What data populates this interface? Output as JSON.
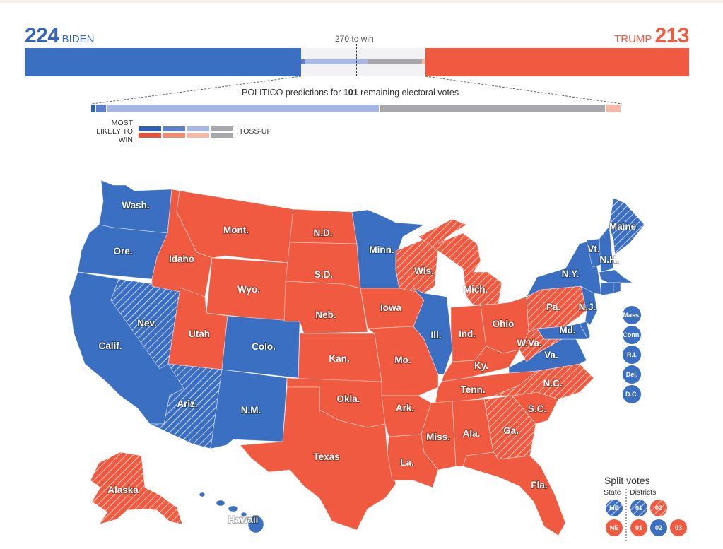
{
  "biden": {
    "count": "224",
    "name": "BIDEN",
    "color": "#3366bb"
  },
  "trump": {
    "count": "213",
    "name": "TRUMP",
    "color": "#f05a40"
  },
  "win_label": "270 to win",
  "prediction": {
    "prefix": "POLITICO predictions for",
    "count": "101",
    "suffix": "remaining electoral votes"
  },
  "legend": {
    "line1": "MOST",
    "line2": "LIKELY TO",
    "line3": "WIN",
    "tossup": "TOSS-UP",
    "colors": {
      "dem": [
        "#2f5fb3",
        "#5b7fc9",
        "#a6b7e3"
      ],
      "rep": [
        "#e8523c",
        "#f28a73",
        "#f7b8a8"
      ],
      "tossup": "#a8a8ac"
    }
  },
  "states": {
    "wash": "Wash.",
    "ore": "Ore.",
    "calif": "Calif.",
    "nev": "Nev.",
    "idaho": "Idaho",
    "mont": "Mont.",
    "wyo": "Wyo.",
    "utah": "Utah",
    "colo": "Colo.",
    "ariz": "Ariz.",
    "nm": "N.M.",
    "nd": "N.D.",
    "sd": "S.D.",
    "neb": "Neb.",
    "kan": "Kan.",
    "okla": "Okla.",
    "texas": "Texas",
    "minn": "Minn.",
    "iowa": "Iowa",
    "mo": "Mo.",
    "ark": "Ark.",
    "la": "La.",
    "wis": "Wis.",
    "ill": "Ill.",
    "mich": "Mich.",
    "ind": "Ind.",
    "ohio": "Ohio",
    "ky": "Ky.",
    "tenn": "Tenn.",
    "miss": "Miss.",
    "ala": "Ala.",
    "ga": "Ga.",
    "fla": "Fla.",
    "sc": "S.C.",
    "nc": "N.C.",
    "va": "Va.",
    "wva": "W.Va.",
    "pa": "Pa.",
    "ny": "N.Y.",
    "vt": "Vt.",
    "nh": "N.H.",
    "maine": "Maine",
    "nj": "N.J.",
    "md": "Md.",
    "alaska": "Alaska",
    "hawaii": "Hawaii"
  },
  "small_states": [
    "Mass.",
    "Conn.",
    "R.I.",
    "Del.",
    "D.C."
  ],
  "split": {
    "title": "Split votes",
    "state": "State",
    "districts": "Districts",
    "me": "ME",
    "ne": "NE",
    "me_districts": [
      "01",
      "02"
    ],
    "ne_districts": [
      "01",
      "02",
      "03"
    ]
  }
}
